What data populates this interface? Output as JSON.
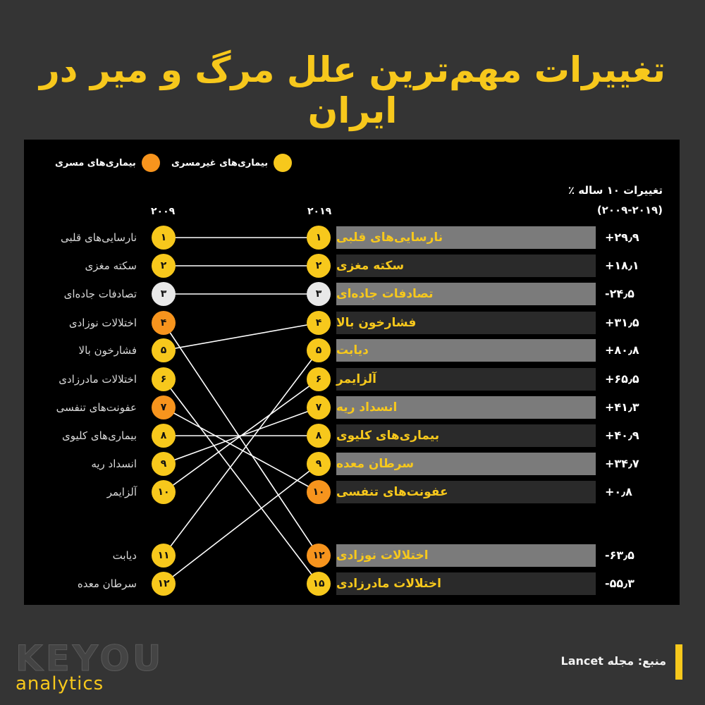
{
  "title": "تغییرات مهم‌ترین علل مرگ و میر در ایران",
  "legend": [
    {
      "label": "بیماری‌های غیرمسری",
      "color": "#f7c81c"
    },
    {
      "label": "بیماری‌های مسری",
      "color": "#f7941d"
    }
  ],
  "changes_header": {
    "line1": "تغییرات ۱۰ ساله ٪",
    "line2": "(۲۰۰۹-۲۰۱۹)"
  },
  "years": {
    "left": "۲۰۰۹",
    "right": "۲۰۱۹"
  },
  "colors": {
    "noncommunicable": "#f7c81c",
    "communicable": "#f7941d",
    "injury": "#e8e8e8"
  },
  "chart_data": {
    "type": "table",
    "rank_2009": [
      {
        "rank": "۱",
        "label": "نارسایی‌های قلبی",
        "category": "noncommunicable"
      },
      {
        "rank": "۲",
        "label": "سکته مغزی",
        "category": "noncommunicable"
      },
      {
        "rank": "۳",
        "label": "تصادفات جاده‌ای",
        "category": "injury"
      },
      {
        "rank": "۴",
        "label": "اختلالات نوزادی",
        "category": "communicable"
      },
      {
        "rank": "۵",
        "label": "فشارخون بالا",
        "category": "noncommunicable"
      },
      {
        "rank": "۶",
        "label": "اختلالات مادرزادی",
        "category": "noncommunicable"
      },
      {
        "rank": "۷",
        "label": "عفونت‌های تنفسی",
        "category": "communicable"
      },
      {
        "rank": "۸",
        "label": "بیماری‌های کلیوی",
        "category": "noncommunicable"
      },
      {
        "rank": "۹",
        "label": "انسداد ریه",
        "category": "noncommunicable"
      },
      {
        "rank": "۱۰",
        "label": "آلزایمر",
        "category": "noncommunicable"
      },
      {
        "rank": "۱۱",
        "label": "دیابت",
        "category": "noncommunicable"
      },
      {
        "rank": "۱۲",
        "label": "سرطان معده",
        "category": "noncommunicable"
      }
    ],
    "rank_2019": [
      {
        "rank": "۱",
        "label": "نارسایی‌های قلبی",
        "change": "+۲۹٫۹",
        "category": "noncommunicable",
        "rank2009": 1
      },
      {
        "rank": "۲",
        "label": "سکته مغزی",
        "change": "+۱۸٫۱",
        "category": "noncommunicable",
        "rank2009": 2
      },
      {
        "rank": "۳",
        "label": "تصادفات جاده‌ای",
        "change": "-۲۴٫۵",
        "category": "injury",
        "rank2009": 3
      },
      {
        "rank": "۴",
        "label": "فشارخون بالا",
        "change": "+۳۱٫۵",
        "category": "noncommunicable",
        "rank2009": 5
      },
      {
        "rank": "۵",
        "label": "دیابت",
        "change": "+۸۰٫۸",
        "category": "noncommunicable",
        "rank2009": 11
      },
      {
        "rank": "۶",
        "label": "آلزایمر",
        "change": "+۶۵٫۵",
        "category": "noncommunicable",
        "rank2009": 10
      },
      {
        "rank": "۷",
        "label": "انسداد ریه",
        "change": "+۴۱٫۳",
        "category": "noncommunicable",
        "rank2009": 9
      },
      {
        "rank": "۸",
        "label": "بیماری‌های کلیوی",
        "change": "+۴۰٫۹",
        "category": "noncommunicable",
        "rank2009": 8
      },
      {
        "rank": "۹",
        "label": "سرطان معده",
        "change": "+۳۴٫۷",
        "category": "noncommunicable",
        "rank2009": 12
      },
      {
        "rank": "۱۰",
        "label": "عفونت‌های تنفسی",
        "change": "+۰٫۸",
        "category": "communicable",
        "rank2009": 7
      },
      {
        "rank": "۱۲",
        "label": "اختلالات نوزادی",
        "change": "-۶۳٫۵",
        "category": "communicable",
        "rank2009": 4
      },
      {
        "rank": "۱۵",
        "label": "اختلالات مادرزادی",
        "change": "-۵۵٫۳",
        "category": "noncommunicable",
        "rank2009": 6
      }
    ]
  },
  "source": "منبع: مجله Lancet",
  "logo": {
    "top": "KEYOU",
    "bottom": "analytics"
  }
}
